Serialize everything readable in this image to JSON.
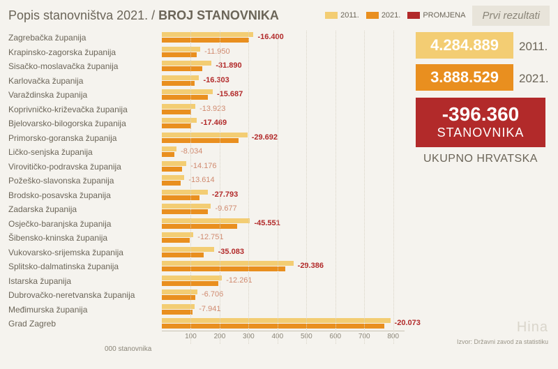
{
  "title_a": "Popis stanovništva 2021. / ",
  "title_b": "BROJ STANOVNIKA",
  "tag": "Prvi rezultati",
  "legend": [
    {
      "label": "2011.",
      "color": "#f3cd73"
    },
    {
      "label": "2021.",
      "color": "#e98f1f"
    },
    {
      "label": "PROMJENA",
      "color": "#b22a2a"
    }
  ],
  "colors": {
    "bar2011": "#f3cd73",
    "bar2021": "#e98f1f",
    "change_text": "#b22a2a",
    "change_text_light": "#d08a6f",
    "background": "#f5f3ee"
  },
  "axis": {
    "title": "000 stanovnika",
    "ticks": [
      100,
      200,
      300,
      400,
      500,
      600,
      700,
      800
    ],
    "max": 820
  },
  "side": {
    "v2011": "4.284.889",
    "y2011": "2011.",
    "v2021": "3.888.529",
    "y2021": "2021.",
    "diff_num": "-396.360",
    "diff_word": "STANOVNIKA",
    "total": "UKUPNO HRVATSKA",
    "box2011_bg": "#f3cd73",
    "box2021_bg": "#e98f1f",
    "diff_bg": "#b22a2a"
  },
  "watermark": "Hina",
  "source": "Izvor: Državni zavod za statistiku",
  "rows": [
    {
      "name": "Zagrebačka županija",
      "v2011": 317,
      "v2021": 301,
      "change": "-16.400",
      "bold": true
    },
    {
      "name": "Krapinsko-zagorska županija",
      "v2011": 133,
      "v2021": 121,
      "change": "-11.950",
      "bold": false
    },
    {
      "name": "Sisačko-moslavačka županija",
      "v2011": 172,
      "v2021": 140,
      "change": "-31.890",
      "bold": true
    },
    {
      "name": "Karlovačka županija",
      "v2011": 129,
      "v2021": 113,
      "change": "-16.303",
      "bold": true
    },
    {
      "name": "Varaždinska županija",
      "v2011": 176,
      "v2021": 160,
      "change": "-15.687",
      "bold": true
    },
    {
      "name": "Koprivničko-križevačka županija",
      "v2011": 116,
      "v2021": 102,
      "change": "-13.923",
      "bold": false
    },
    {
      "name": "Bjelovarsko-bilogorska županija",
      "v2011": 120,
      "v2021": 102,
      "change": "-17.469",
      "bold": true
    },
    {
      "name": "Primorsko-goranska županija",
      "v2011": 296,
      "v2021": 266,
      "change": "-29.692",
      "bold": true
    },
    {
      "name": "Ličko-senjska županija",
      "v2011": 51,
      "v2021": 43,
      "change": "-8.034",
      "bold": false
    },
    {
      "name": "Virovitičko-podravska županija",
      "v2011": 85,
      "v2021": 71,
      "change": "-14.176",
      "bold": false
    },
    {
      "name": "Požeško-slavonska županija",
      "v2011": 78,
      "v2021": 64,
      "change": "-13.614",
      "bold": false
    },
    {
      "name": "Brodsko-posavska županija",
      "v2011": 159,
      "v2021": 131,
      "change": "-27.793",
      "bold": true
    },
    {
      "name": "Zadarska županija",
      "v2011": 170,
      "v2021": 160,
      "change": "-9.677",
      "bold": false
    },
    {
      "name": "Osječko-baranjska županija",
      "v2011": 305,
      "v2021": 260,
      "change": "-45.551",
      "bold": true
    },
    {
      "name": "Šibensko-kninska županija",
      "v2011": 109,
      "v2021": 96,
      "change": "-12.751",
      "bold": false
    },
    {
      "name": "Vukovarsko-srijemska županija",
      "v2011": 180,
      "v2021": 145,
      "change": "-35.083",
      "bold": true
    },
    {
      "name": "Splitsko-dalmatinska županija",
      "v2011": 455,
      "v2021": 426,
      "change": "-29.386",
      "bold": true
    },
    {
      "name": "Istarska županija",
      "v2011": 208,
      "v2021": 196,
      "change": "-12.261",
      "bold": false
    },
    {
      "name": "Dubrovačko-neretvanska županija",
      "v2011": 123,
      "v2021": 116,
      "change": "-6.706",
      "bold": false
    },
    {
      "name": "Međimurska županija",
      "v2011": 114,
      "v2021": 106,
      "change": "-7.941",
      "bold": false
    },
    {
      "name": "Grad Zagreb",
      "v2011": 790,
      "v2021": 770,
      "change": "-20.073",
      "bold": true
    }
  ]
}
